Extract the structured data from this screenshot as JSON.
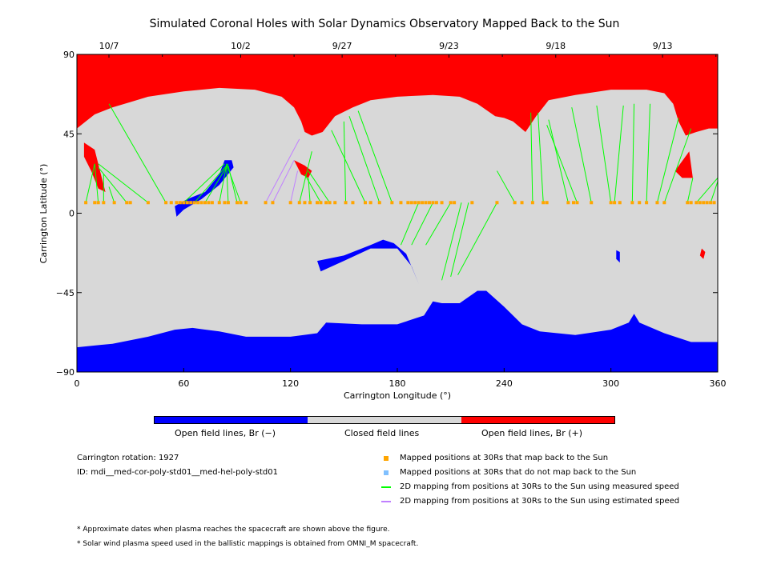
{
  "chart_data": {
    "type": "heatmap",
    "title": "Simulated Coronal Holes with Solar Dynamics Observatory Mapped Back to the Sun",
    "xlabel": "Carrington Longitude (°)",
    "ylabel": "Carrington Latitude (°)",
    "xlim": [
      0,
      360
    ],
    "ylim": [
      -90,
      90
    ],
    "x_ticks": [
      "0",
      "60",
      "120",
      "180",
      "240",
      "300",
      "360"
    ],
    "x_tick_values": [
      0,
      60,
      120,
      180,
      240,
      300,
      360
    ],
    "y_ticks": [
      "90",
      "45",
      "0",
      "−45",
      "−90"
    ],
    "y_tick_values": [
      90,
      45,
      0,
      -45,
      -90
    ],
    "top_date_ticks": [
      {
        "label": "10/7",
        "lon": 18
      },
      {
        "label": "10/2",
        "lon": 92
      },
      {
        "label": "9/27",
        "lon": 149
      },
      {
        "label": "9/23",
        "lon": 209
      },
      {
        "label": "9/18",
        "lon": 269
      },
      {
        "label": "9/13",
        "lon": 329
      }
    ],
    "colors": {
      "open_negative": "#0000ff",
      "closed": "#d8d8d8",
      "open_positive": "#ff0000",
      "mapped_point": "#ffa500",
      "unmapped_point": "#80c0ff",
      "measured_line": "#00ff00",
      "estimated_line": "#c080ff"
    },
    "colorbar": [
      {
        "label": "Open field lines, Br (−)",
        "color": "#0000ff"
      },
      {
        "label": "Closed field lines",
        "color": "#d8d8d8"
      },
      {
        "label": "Open field lines, Br (+)",
        "color": "#ff0000"
      }
    ],
    "north_boundary": [
      [
        0,
        90
      ],
      [
        0,
        48
      ],
      [
        5,
        52
      ],
      [
        10,
        56
      ],
      [
        15,
        58
      ],
      [
        20,
        60
      ],
      [
        30,
        63
      ],
      [
        40,
        66
      ],
      [
        60,
        69
      ],
      [
        80,
        71
      ],
      [
        100,
        70
      ],
      [
        115,
        66
      ],
      [
        122,
        60
      ],
      [
        126,
        52
      ],
      [
        128,
        46
      ],
      [
        132,
        44
      ],
      [
        138,
        46
      ],
      [
        145,
        55
      ],
      [
        155,
        60
      ],
      [
        165,
        64
      ],
      [
        180,
        66
      ],
      [
        200,
        67
      ],
      [
        215,
        66
      ],
      [
        225,
        62
      ],
      [
        235,
        55
      ],
      [
        240,
        54
      ],
      [
        245,
        52
      ],
      [
        252,
        46
      ],
      [
        258,
        55
      ],
      [
        265,
        64
      ],
      [
        280,
        67
      ],
      [
        300,
        70
      ],
      [
        320,
        70
      ],
      [
        330,
        68
      ],
      [
        335,
        62
      ],
      [
        338,
        52
      ],
      [
        342,
        44
      ],
      [
        348,
        46
      ],
      [
        355,
        48
      ],
      [
        360,
        48
      ],
      [
        360,
        90
      ]
    ],
    "south_boundary": [
      [
        0,
        -76
      ],
      [
        20,
        -74
      ],
      [
        40,
        -70
      ],
      [
        55,
        -66
      ],
      [
        65,
        -65
      ],
      [
        80,
        -67
      ],
      [
        95,
        -70
      ],
      [
        120,
        -70
      ],
      [
        135,
        -68
      ],
      [
        140,
        -62
      ],
      [
        160,
        -63
      ],
      [
        180,
        -63
      ],
      [
        195,
        -58
      ],
      [
        200,
        -50
      ],
      [
        205,
        -51
      ],
      [
        215,
        -51
      ],
      [
        225,
        -44
      ],
      [
        230,
        -44
      ],
      [
        240,
        -53
      ],
      [
        250,
        -63
      ],
      [
        260,
        -67
      ],
      [
        280,
        -69
      ],
      [
        300,
        -66
      ],
      [
        310,
        -62
      ],
      [
        313,
        -57
      ],
      [
        316,
        -62
      ],
      [
        330,
        -68
      ],
      [
        345,
        -73
      ],
      [
        360,
        -73
      ],
      [
        360,
        -90
      ],
      [
        0,
        -90
      ]
    ],
    "mapped_points_lon": [
      5,
      10,
      12,
      15,
      21,
      28,
      30,
      40,
      50,
      53,
      56,
      58,
      60,
      62,
      64,
      66,
      68,
      70,
      72,
      74,
      76,
      80,
      83,
      85,
      90,
      92,
      95,
      106,
      110,
      120,
      125,
      128,
      131,
      135,
      137,
      140,
      142,
      145,
      151,
      155,
      162,
      165,
      170,
      177,
      182,
      186,
      188,
      190,
      192,
      194,
      196,
      198,
      200,
      202,
      205,
      210,
      212,
      222,
      236,
      246,
      250,
      256,
      262,
      264,
      276,
      279,
      281,
      289,
      300,
      302,
      305,
      312,
      316,
      320,
      326,
      330,
      343,
      345,
      348,
      350,
      352,
      354,
      356,
      358
    ],
    "mapped_points_lat": 6,
    "measured_lines": [
      {
        "from": [
          5,
          6
        ],
        "to": [
          10,
          28
        ]
      },
      {
        "from": [
          12,
          6
        ],
        "to": [
          10,
          28
        ]
      },
      {
        "from": [
          15,
          6
        ],
        "to": [
          15,
          22
        ]
      },
      {
        "from": [
          21,
          6
        ],
        "to": [
          18,
          15
        ]
      },
      {
        "from": [
          28,
          6
        ],
        "to": [
          12,
          26
        ]
      },
      {
        "from": [
          40,
          6
        ],
        "to": [
          12,
          28
        ]
      },
      {
        "from": [
          50,
          6
        ],
        "to": [
          18,
          62
        ]
      },
      {
        "from": [
          60,
          6
        ],
        "to": [
          83,
          28
        ]
      },
      {
        "from": [
          66,
          6
        ],
        "to": [
          84,
          27
        ]
      },
      {
        "from": [
          72,
          6
        ],
        "to": [
          85,
          28
        ]
      },
      {
        "from": [
          80,
          6
        ],
        "to": [
          84,
          27
        ]
      },
      {
        "from": [
          85,
          6
        ],
        "to": [
          84,
          28
        ]
      },
      {
        "from": [
          90,
          6
        ],
        "to": [
          85,
          27
        ]
      },
      {
        "from": [
          92,
          6
        ],
        "to": [
          84,
          28
        ]
      },
      {
        "from": [
          125,
          6
        ],
        "to": [
          132,
          35
        ]
      },
      {
        "from": [
          131,
          6
        ],
        "to": [
          130,
          20
        ]
      },
      {
        "from": [
          137,
          6
        ],
        "to": [
          128,
          22
        ]
      },
      {
        "from": [
          142,
          6
        ],
        "to": [
          130,
          24
        ]
      },
      {
        "from": [
          151,
          6
        ],
        "to": [
          150,
          52
        ]
      },
      {
        "from": [
          162,
          6
        ],
        "to": [
          143,
          47
        ]
      },
      {
        "from": [
          170,
          6
        ],
        "to": [
          153,
          55
        ]
      },
      {
        "from": [
          177,
          6
        ],
        "to": [
          158,
          58
        ]
      },
      {
        "from": [
          182,
          -18
        ],
        "to": [
          192,
          6
        ]
      },
      {
        "from": [
          188,
          -18
        ],
        "to": [
          200,
          6
        ]
      },
      {
        "from": [
          196,
          -18
        ],
        "to": [
          210,
          6
        ]
      },
      {
        "from": [
          205,
          -38
        ],
        "to": [
          216,
          6
        ]
      },
      {
        "from": [
          210,
          -36
        ],
        "to": [
          220,
          6
        ]
      },
      {
        "from": [
          214,
          -35
        ],
        "to": [
          236,
          6
        ]
      },
      {
        "from": [
          246,
          6
        ],
        "to": [
          236,
          24
        ]
      },
      {
        "from": [
          256,
          6
        ],
        "to": [
          255,
          57
        ]
      },
      {
        "from": [
          262,
          6
        ],
        "to": [
          259,
          57
        ]
      },
      {
        "from": [
          276,
          6
        ],
        "to": [
          265,
          53
        ]
      },
      {
        "from": [
          281,
          6
        ],
        "to": [
          264,
          50
        ]
      },
      {
        "from": [
          289,
          6
        ],
        "to": [
          278,
          60
        ]
      },
      {
        "from": [
          300,
          6
        ],
        "to": [
          292,
          61
        ]
      },
      {
        "from": [
          302,
          6
        ],
        "to": [
          307,
          61
        ]
      },
      {
        "from": [
          312,
          6
        ],
        "to": [
          313,
          62
        ]
      },
      {
        "from": [
          320,
          6
        ],
        "to": [
          322,
          62
        ]
      },
      {
        "from": [
          326,
          6
        ],
        "to": [
          338,
          54
        ]
      },
      {
        "from": [
          330,
          6
        ],
        "to": [
          345,
          48
        ]
      },
      {
        "from": [
          343,
          6
        ],
        "to": [
          346,
          20
        ]
      },
      {
        "from": [
          348,
          6
        ],
        "to": [
          360,
          20
        ]
      },
      {
        "from": [
          356,
          6
        ],
        "to": [
          360,
          18
        ]
      }
    ],
    "estimated_lines": [
      {
        "from": [
          106,
          6
        ],
        "to": [
          125,
          42
        ]
      },
      {
        "from": [
          110,
          6
        ],
        "to": [
          122,
          30
        ]
      },
      {
        "from": [
          120,
          6
        ],
        "to": [
          124,
          24
        ]
      }
    ],
    "legend": [
      {
        "kind": "point",
        "color": "#ffa500",
        "label": "Mapped positions at 30Rs that map back to the Sun"
      },
      {
        "kind": "point",
        "color": "#80c0ff",
        "label": "Mapped positions at 30Rs that do not map back to the Sun"
      },
      {
        "kind": "line",
        "color": "#00ff00",
        "label": "2D mapping from positions at 30Rs to the Sun using measured speed"
      },
      {
        "kind": "line",
        "color": "#c080ff",
        "label": "2D mapping from positions at 30Rs to the Sun using estimated speed"
      }
    ]
  },
  "info": {
    "rotation": "Carrington rotation: 1927",
    "id": "ID: mdi__med-cor-poly-std01__med-hel-poly-std01",
    "note1": "* Approximate dates when plasma reaches the spacecraft are shown above the figure.",
    "note2": "* Solar wind plasma speed used in the ballistic mappings is obtained from OMNI_M spacecraft."
  }
}
